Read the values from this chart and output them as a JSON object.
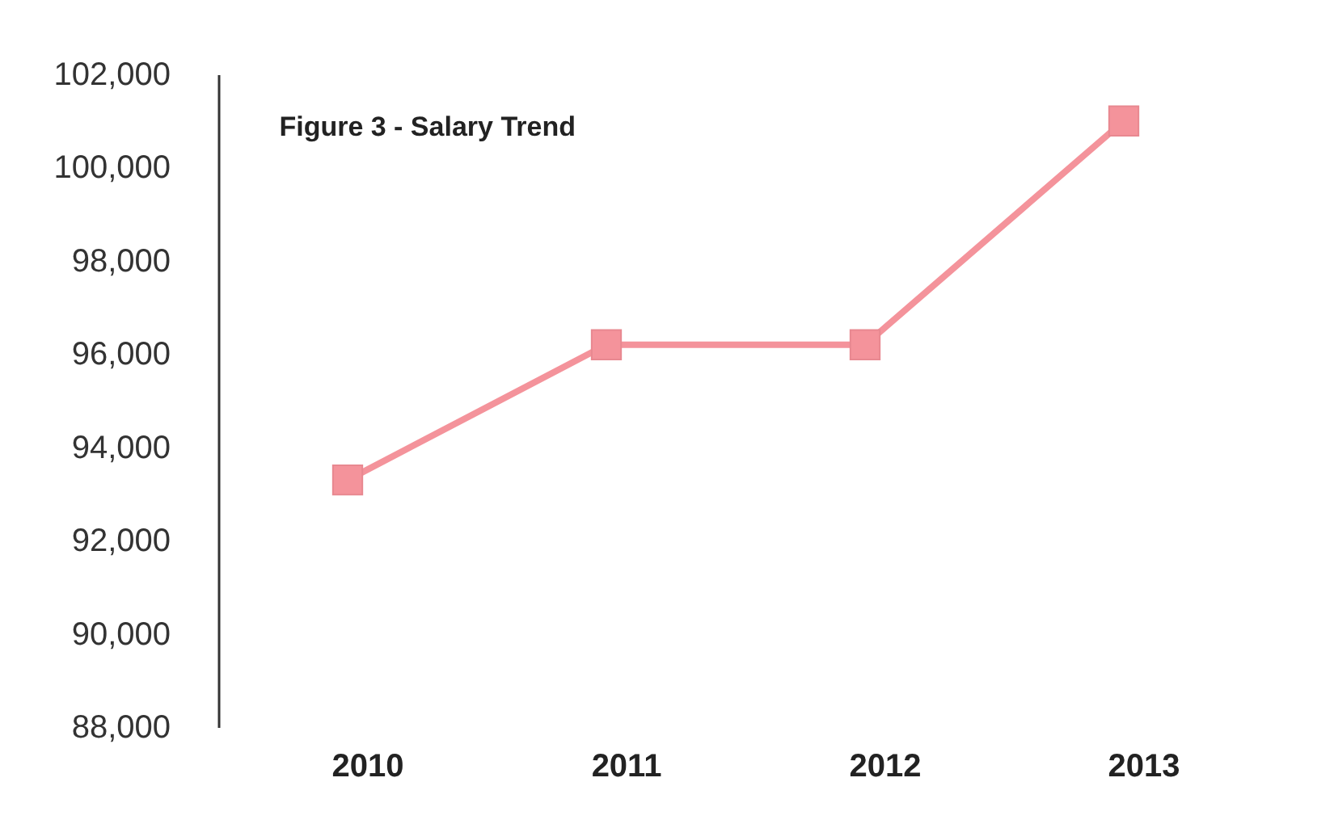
{
  "chart_data": {
    "type": "line",
    "title": "Figure  3 - Salary Trend",
    "categories": [
      "2010",
      "2011",
      "2012",
      "2013"
    ],
    "series": [
      {
        "color": "#f4939b",
        "values": [
          93300,
          96200,
          96200,
          101000
        ]
      }
    ],
    "ylim": [
      88000,
      102000
    ],
    "yticks": [
      {
        "value": 88000,
        "label": "88,000"
      },
      {
        "value": 90000,
        "label": "90,000"
      },
      {
        "value": 92000,
        "label": "92,000"
      },
      {
        "value": 94000,
        "label": "94,000"
      },
      {
        "value": 96000,
        "label": "96,000"
      },
      {
        "value": 98000,
        "label": "98,000"
      },
      {
        "value": 100000,
        "label": "100,000"
      },
      {
        "value": 102000,
        "label": "102,000"
      }
    ],
    "grid": false,
    "legend": false,
    "marker": "square",
    "line_style": "solid"
  }
}
